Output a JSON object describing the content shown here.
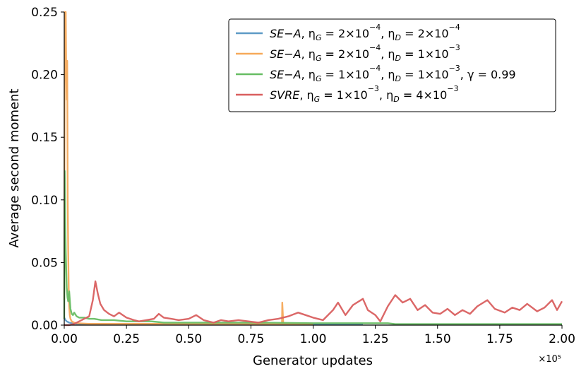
{
  "chart_data": {
    "type": "line",
    "xlabel": "Generator updates",
    "ylabel": "Average second moment",
    "x_offset_label": "×10⁵",
    "xlim": [
      0,
      2.0
    ],
    "ylim": [
      0,
      0.25
    ],
    "xticks": [
      "0.00",
      "0.25",
      "0.50",
      "0.75",
      "1.00",
      "1.25",
      "1.50",
      "1.75",
      "2.00"
    ],
    "yticks": [
      "0.00",
      "0.05",
      "0.10",
      "0.15",
      "0.20",
      "0.25"
    ],
    "grid": false,
    "legend_position": "top-right",
    "series": [
      {
        "name": "SE−A, ηG = 2×10⁻⁴, ηD = 2×10⁻⁴",
        "legend_parts": [
          "SE−A",
          ", η",
          "G",
          " = 2×10",
          "−4",
          ", η",
          "D",
          " = 2×10",
          "−4"
        ],
        "color": "#5d9ac6",
        "x": [
          0.0,
          0.005,
          0.01,
          0.02,
          0.03,
          0.05,
          0.1,
          0.2,
          0.4,
          0.6,
          0.8,
          1.0,
          1.2
        ],
        "y": [
          0.006,
          0.004,
          0.003,
          0.002,
          0.0015,
          0.001,
          0.0008,
          0.0006,
          0.0005,
          0.0005,
          0.0005,
          0.0005,
          0.0005
        ]
      },
      {
        "name": "SE−A, ηG = 2×10⁻⁴, ηD = 1×10⁻³",
        "legend_parts": [
          "SE−A",
          ", η",
          "G",
          " = 2×10",
          "−4",
          ", η",
          "D",
          " = 1×10",
          "−3"
        ],
        "color": "#f6a95a",
        "x": [
          0.0,
          0.002,
          0.004,
          0.006,
          0.008,
          0.01,
          0.012,
          0.014,
          0.016,
          0.018,
          0.02,
          0.022,
          0.025,
          0.03,
          0.04,
          0.05,
          0.1,
          0.2,
          0.4,
          0.6,
          0.8,
          0.875,
          0.876,
          0.878,
          0.88,
          0.9,
          1.0
        ],
        "y": [
          0.02,
          0.25,
          0.22,
          0.25,
          0.2,
          0.18,
          0.211,
          0.1,
          0.06,
          0.03,
          0.015,
          0.008,
          0.005,
          0.003,
          0.002,
          0.0015,
          0.001,
          0.001,
          0.001,
          0.001,
          0.001,
          0.001,
          0.018,
          0.01,
          0.001,
          0.001,
          0.001
        ]
      },
      {
        "name": "SE−A, ηG = 1×10⁻⁴, ηD = 1×10⁻³, γ = 0.99",
        "legend_parts": [
          "SE−A",
          ", η",
          "G",
          " = 1×10",
          "−4",
          ", η",
          "D",
          " = 1×10",
          "−3",
          ", γ = 0.99"
        ],
        "color": "#67bd63",
        "x": [
          0.0,
          0.002,
          0.004,
          0.006,
          0.008,
          0.01,
          0.013,
          0.016,
          0.02,
          0.025,
          0.03,
          0.035,
          0.04,
          0.05,
          0.06,
          0.08,
          0.1,
          0.12,
          0.15,
          0.2,
          0.25,
          0.3,
          0.35,
          0.4,
          0.5,
          0.6,
          0.8,
          1.0,
          1.2,
          1.3,
          1.33,
          1.4,
          1.6,
          1.8,
          2.0
        ],
        "y": [
          0.005,
          0.123,
          0.087,
          0.06,
          0.045,
          0.03,
          0.022,
          0.019,
          0.027,
          0.013,
          0.009,
          0.008,
          0.01,
          0.007,
          0.006,
          0.006,
          0.005,
          0.005,
          0.004,
          0.004,
          0.003,
          0.003,
          0.003,
          0.002,
          0.002,
          0.002,
          0.002,
          0.0015,
          0.0015,
          0.0015,
          0.0008,
          0.0008,
          0.0008,
          0.0008,
          0.0008
        ]
      },
      {
        "name": "SVRE, ηG = 1×10⁻³, ηD = 4×10⁻³",
        "legend_parts": [
          "SVRE",
          ", η",
          "G",
          " = 1×10",
          "−3",
          ", η",
          "D",
          " = 4×10",
          "−3"
        ],
        "color": "#d95f5f",
        "x": [
          0.0,
          0.02,
          0.04,
          0.06,
          0.08,
          0.1,
          0.115,
          0.125,
          0.135,
          0.145,
          0.16,
          0.18,
          0.2,
          0.22,
          0.25,
          0.28,
          0.3,
          0.33,
          0.36,
          0.38,
          0.4,
          0.43,
          0.46,
          0.5,
          0.53,
          0.56,
          0.6,
          0.63,
          0.66,
          0.7,
          0.74,
          0.78,
          0.82,
          0.86,
          0.9,
          0.94,
          0.97,
          1.0,
          1.04,
          1.08,
          1.1,
          1.13,
          1.16,
          1.2,
          1.22,
          1.25,
          1.27,
          1.3,
          1.33,
          1.36,
          1.39,
          1.42,
          1.45,
          1.48,
          1.51,
          1.54,
          1.57,
          1.6,
          1.63,
          1.66,
          1.7,
          1.73,
          1.77,
          1.8,
          1.83,
          1.86,
          1.9,
          1.93,
          1.96,
          1.98,
          2.0
        ],
        "y": [
          0.0,
          0.0,
          0.001,
          0.003,
          0.005,
          0.007,
          0.02,
          0.035,
          0.025,
          0.017,
          0.012,
          0.009,
          0.007,
          0.01,
          0.006,
          0.004,
          0.003,
          0.004,
          0.005,
          0.009,
          0.006,
          0.005,
          0.004,
          0.005,
          0.008,
          0.004,
          0.002,
          0.004,
          0.003,
          0.004,
          0.003,
          0.002,
          0.004,
          0.005,
          0.007,
          0.01,
          0.008,
          0.006,
          0.004,
          0.012,
          0.018,
          0.008,
          0.016,
          0.021,
          0.012,
          0.008,
          0.003,
          0.015,
          0.024,
          0.018,
          0.021,
          0.012,
          0.016,
          0.01,
          0.009,
          0.013,
          0.008,
          0.012,
          0.009,
          0.015,
          0.02,
          0.013,
          0.01,
          0.014,
          0.012,
          0.017,
          0.011,
          0.014,
          0.02,
          0.012,
          0.019
        ]
      }
    ]
  }
}
